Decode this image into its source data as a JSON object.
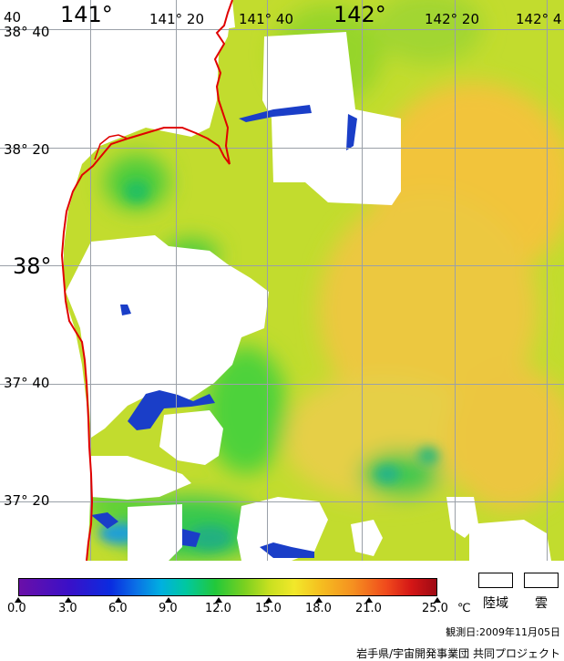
{
  "title": "",
  "grid": {
    "lon_labels": [
      {
        "text": "141°",
        "big": true
      },
      {
        "text": "141° 20",
        "big": false
      },
      {
        "text": "141° 40",
        "big": false
      },
      {
        "text": "142°",
        "big": true
      },
      {
        "text": "142° 20",
        "big": false
      },
      {
        "text": "142° 4",
        "big": false
      }
    ],
    "lat_labels": [
      {
        "text": "38° 40",
        "big": false
      },
      {
        "text": "38° 20",
        "big": false
      },
      {
        "text": "38°",
        "big": true
      },
      {
        "text": "37° 40",
        "big": false
      },
      {
        "text": "37° 20",
        "big": false
      }
    ],
    "corner_label": "40"
  },
  "colors": {
    "coastline": "#e00000",
    "land": "#ffffff",
    "cloud": "#ffffff",
    "grid": "#9aa0a8",
    "sea_base": "#c2dc2e"
  },
  "legend": {
    "ticks": [
      "0.0",
      "3.0",
      "6.0",
      "9.0",
      "12.0",
      "15.0",
      "18.0",
      "21.0",
      "25.0"
    ],
    "unit": "℃",
    "land_label": "陸域",
    "cloud_label": "雲"
  },
  "observation_date": "観測日:2009年11月05日",
  "credit": "岩手県/宇宙開発事業団 共同プロジェクト"
}
